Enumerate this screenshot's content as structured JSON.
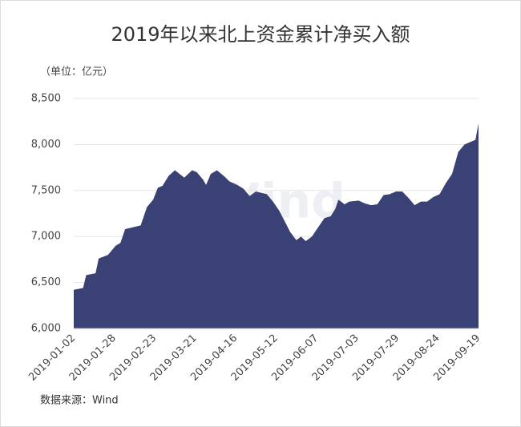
{
  "chart_data": {
    "type": "area",
    "title": "2019年以来北上资金累计净买入额",
    "subtitle": "（单位：亿元）",
    "source": "数据来源：Wind",
    "watermark": "Wind",
    "color": "#3a4275",
    "grid": true,
    "x": [
      "2019-01-02",
      "2019-01-08",
      "2019-01-10",
      "2019-01-16",
      "2019-01-18",
      "2019-01-24",
      "2019-01-29",
      "2019-02-01",
      "2019-02-04",
      "2019-02-14",
      "2019-02-18",
      "2019-02-22",
      "2019-02-25",
      "2019-02-28",
      "2019-03-04",
      "2019-03-08",
      "2019-03-11",
      "2019-03-14",
      "2019-03-19",
      "2019-03-22",
      "2019-03-26",
      "2019-03-28",
      "2019-03-31",
      "2019-04-04",
      "2019-04-09",
      "2019-04-12",
      "2019-04-17",
      "2019-04-21",
      "2019-04-25",
      "2019-04-29",
      "2019-05-06",
      "2019-05-10",
      "2019-05-14",
      "2019-05-18",
      "2019-05-21",
      "2019-05-25",
      "2019-05-28",
      "2019-05-31",
      "2019-06-04",
      "2019-06-08",
      "2019-06-12",
      "2019-06-16",
      "2019-06-19",
      "2019-06-21",
      "2019-06-25",
      "2019-06-28",
      "2019-07-04",
      "2019-07-08",
      "2019-07-12",
      "2019-07-16",
      "2019-07-20",
      "2019-07-24",
      "2019-07-28",
      "2019-08-01",
      "2019-08-05",
      "2019-08-09",
      "2019-08-13",
      "2019-08-17",
      "2019-08-21",
      "2019-08-25",
      "2019-08-29",
      "2019-09-02",
      "2019-09-06",
      "2019-09-10",
      "2019-09-14",
      "2019-09-17",
      "2019-09-19"
    ],
    "values": [
      6420,
      6440,
      6580,
      6600,
      6760,
      6800,
      6900,
      6930,
      7080,
      7120,
      7320,
      7400,
      7530,
      7550,
      7660,
      7720,
      7680,
      7640,
      7720,
      7700,
      7620,
      7560,
      7680,
      7720,
      7650,
      7600,
      7560,
      7520,
      7440,
      7490,
      7460,
      7380,
      7280,
      7150,
      7050,
      6960,
      7000,
      6950,
      7000,
      7100,
      7200,
      7220,
      7300,
      7400,
      7350,
      7380,
      7390,
      7360,
      7340,
      7350,
      7450,
      7460,
      7490,
      7490,
      7420,
      7340,
      7380,
      7380,
      7430,
      7460,
      7580,
      7680,
      7920,
      8000,
      8030,
      8050,
      8230
    ],
    "xlim": [
      "2019-01-02",
      "2019-09-19"
    ],
    "xticks": [
      "2019-01-02",
      "2019-01-28",
      "2019-02-23",
      "2019-03-21",
      "2019-04-16",
      "2019-05-12",
      "2019-06-07",
      "2019-07-03",
      "2019-07-29",
      "2019-08-24",
      "2019-09-19"
    ],
    "ylim": [
      6000,
      8500
    ],
    "yticks": [
      {
        "value": 6000,
        "label": "6,000"
      },
      {
        "value": 6500,
        "label": "6,500"
      },
      {
        "value": 7000,
        "label": "7,000"
      },
      {
        "value": 7500,
        "label": "7,500"
      },
      {
        "value": 8000,
        "label": "8,000"
      },
      {
        "value": 8500,
        "label": "8,500"
      }
    ]
  }
}
